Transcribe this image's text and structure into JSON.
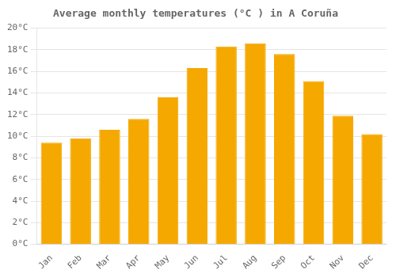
{
  "chart_data": {
    "type": "bar",
    "title": "Average monthly temperatures (°C ) in A Coruña",
    "categories": [
      "Jan",
      "Feb",
      "Mar",
      "Apr",
      "May",
      "Jun",
      "Jul",
      "Aug",
      "Sep",
      "Oct",
      "Nov",
      "Dec"
    ],
    "values": [
      9.4,
      9.8,
      10.6,
      11.6,
      13.6,
      16.3,
      18.3,
      18.6,
      17.6,
      15.1,
      11.9,
      10.2
    ],
    "color": "#F5A800",
    "ylim": [
      0,
      20
    ],
    "yticks": [
      {
        "value": 0,
        "label": "0°C"
      },
      {
        "value": 2,
        "label": "2°C"
      },
      {
        "value": 4,
        "label": "4°C"
      },
      {
        "value": 6,
        "label": "6°C"
      },
      {
        "value": 8,
        "label": "8°C"
      },
      {
        "value": 10,
        "label": "10°C"
      },
      {
        "value": 12,
        "label": "12°C"
      },
      {
        "value": 14,
        "label": "14°C"
      },
      {
        "value": 16,
        "label": "16°C"
      },
      {
        "value": 18,
        "label": "18°C"
      },
      {
        "value": 20,
        "label": "20°C"
      }
    ],
    "grid": true
  }
}
